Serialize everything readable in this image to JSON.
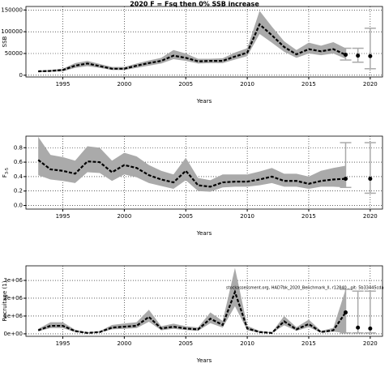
{
  "chart_data": [
    {
      "type": "line",
      "title": "2020 F = Fsq then 0% SSB increase",
      "ylabel": "SSB",
      "xlabel": "Years",
      "x": [
        1993,
        1994,
        1995,
        1996,
        1997,
        1998,
        1999,
        2000,
        2001,
        2002,
        2003,
        2004,
        2005,
        2006,
        2007,
        2008,
        2009,
        2010,
        2011,
        2012,
        2013,
        2014,
        2015,
        2016,
        2017,
        2018
      ],
      "values": [
        9000,
        10000,
        12000,
        22000,
        27000,
        21000,
        15000,
        15000,
        22000,
        28000,
        33000,
        45000,
        40000,
        32000,
        33000,
        33000,
        43000,
        52000,
        117000,
        92000,
        65000,
        48000,
        60000,
        55000,
        60000,
        47000
      ],
      "lower": [
        7000,
        8000,
        9000,
        17000,
        21000,
        17000,
        12000,
        12000,
        17000,
        22000,
        27000,
        37000,
        33000,
        27000,
        28000,
        28000,
        36000,
        44000,
        95000,
        75000,
        54000,
        40000,
        50000,
        46000,
        50000,
        38000
      ],
      "upper": [
        11000,
        12000,
        15000,
        28000,
        33000,
        26000,
        19000,
        19000,
        27000,
        34000,
        40000,
        58000,
        50000,
        38000,
        38000,
        39000,
        52000,
        62000,
        148000,
        112000,
        78000,
        58000,
        75000,
        68000,
        76000,
        62000
      ],
      "points": {
        "x": [
          2018,
          2019,
          2020
        ],
        "values": [
          47000,
          45000,
          44000
        ],
        "lower": [
          35000,
          30000,
          15000
        ],
        "upper": [
          62000,
          62000,
          108000
        ]
      },
      "xlim": [
        1992,
        2021
      ],
      "xticks": [
        1995,
        2000,
        2005,
        2010,
        2015,
        2020
      ],
      "ylim": [
        -4000,
        158000
      ],
      "yticks": [
        0,
        50000,
        100000,
        150000
      ],
      "grid": true,
      "color": "#000000",
      "band_color": "#aaaaaa"
    },
    {
      "type": "line",
      "ylabel": "F",
      "ylabel_subscript": "3-5",
      "xlabel": "Years",
      "x": [
        1993,
        1994,
        1995,
        1996,
        1997,
        1998,
        1999,
        2000,
        2001,
        2002,
        2003,
        2004,
        2005,
        2006,
        2007,
        2008,
        2009,
        2010,
        2011,
        2012,
        2013,
        2014,
        2015,
        2016,
        2017,
        2018
      ],
      "values": [
        0.63,
        0.5,
        0.48,
        0.44,
        0.61,
        0.6,
        0.46,
        0.56,
        0.52,
        0.42,
        0.36,
        0.32,
        0.48,
        0.28,
        0.26,
        0.32,
        0.33,
        0.33,
        0.36,
        0.4,
        0.34,
        0.34,
        0.3,
        0.34,
        0.36,
        0.37
      ],
      "lower": [
        0.42,
        0.36,
        0.34,
        0.31,
        0.46,
        0.45,
        0.34,
        0.43,
        0.39,
        0.31,
        0.27,
        0.23,
        0.35,
        0.2,
        0.19,
        0.25,
        0.26,
        0.26,
        0.28,
        0.31,
        0.26,
        0.26,
        0.23,
        0.26,
        0.26,
        0.25
      ],
      "upper": [
        0.95,
        0.7,
        0.67,
        0.62,
        0.82,
        0.8,
        0.62,
        0.73,
        0.68,
        0.56,
        0.48,
        0.43,
        0.66,
        0.38,
        0.35,
        0.43,
        0.43,
        0.43,
        0.47,
        0.52,
        0.44,
        0.44,
        0.4,
        0.48,
        0.52,
        0.55
      ],
      "points": {
        "x": [
          2018,
          2020
        ],
        "values": [
          0.37,
          0.37
        ],
        "lower": [
          0.25,
          0.17
        ],
        "upper": [
          0.87,
          0.87
        ]
      },
      "xlim": [
        1992,
        2021
      ],
      "xticks": [
        1995,
        2000,
        2005,
        2010,
        2015,
        2020
      ],
      "ylim": [
        -0.05,
        0.96
      ],
      "yticks": [
        {
          "value": 0,
          "label": "0.0"
        },
        0.2,
        0.4,
        0.6,
        0.8
      ],
      "grid": true,
      "color": "#000000",
      "band_color": "#aaaaaa"
    },
    {
      "type": "line",
      "ylabel": "Recruitage (1)",
      "xlabel": "Years",
      "annotation": "stockassessment.org, HAD7bk_2020_Benchmark_ll, r12840 , git: 5b33445cda",
      "x": [
        1993,
        1994,
        1995,
        1996,
        1997,
        1998,
        1999,
        2000,
        2001,
        2002,
        2003,
        2004,
        2005,
        2006,
        2007,
        2008,
        2009,
        2010,
        2011,
        2012,
        2013,
        2014,
        2015,
        2016,
        2017,
        2018
      ],
      "values": [
        200000,
        450000,
        450000,
        150000,
        50000,
        100000,
        350000,
        400000,
        450000,
        950000,
        300000,
        400000,
        300000,
        250000,
        850000,
        500000,
        2350000,
        300000,
        100000,
        50000,
        700000,
        250000,
        550000,
        100000,
        200000,
        1200000
      ],
      "lower": [
        150000,
        320000,
        320000,
        100000,
        30000,
        70000,
        250000,
        280000,
        320000,
        680000,
        200000,
        280000,
        210000,
        170000,
        600000,
        350000,
        1550000,
        200000,
        60000,
        30000,
        480000,
        170000,
        380000,
        60000,
        120000,
        50000
      ],
      "upper": [
        280000,
        650000,
        650000,
        230000,
        80000,
        150000,
        500000,
        580000,
        650000,
        1350000,
        430000,
        570000,
        430000,
        360000,
        1200000,
        720000,
        3700000,
        450000,
        160000,
        90000,
        1000000,
        370000,
        800000,
        170000,
        330000,
        2500000
      ],
      "points": {
        "x": [
          2018,
          2019,
          2020
        ],
        "values": [
          1200000,
          350000,
          300000
        ],
        "lower": [
          50000,
          50000,
          50000
        ],
        "upper": [
          2500000,
          2400000,
          2400000
        ]
      },
      "xlim": [
        1992,
        2021
      ],
      "xticks": [
        1995,
        2000,
        2005,
        2010,
        2015,
        2020
      ],
      "ylim": [
        -140000,
        3820000
      ],
      "yticks": [
        {
          "value": 0,
          "label": "0e+00"
        },
        {
          "value": 1000000,
          "label": "1e+06"
        },
        {
          "value": 2000000,
          "label": "2e+06"
        },
        {
          "value": 3000000,
          "label": "3e+06"
        }
      ],
      "grid": true,
      "color": "#000000",
      "band_color": "#aaaaaa"
    }
  ]
}
